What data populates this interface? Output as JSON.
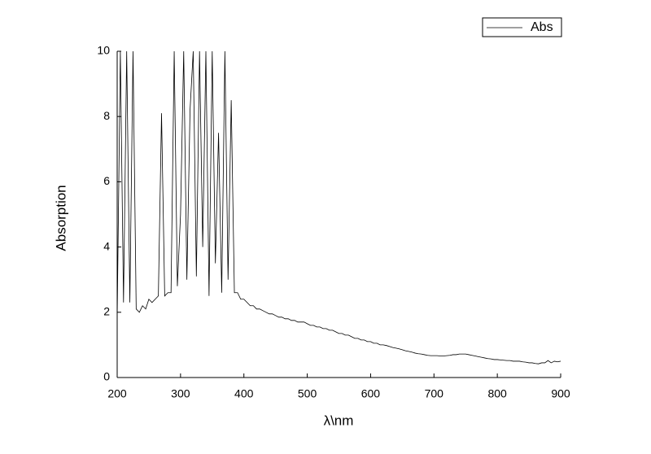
{
  "chart_data": {
    "type": "line",
    "x_label": "λ\\nm",
    "y_label": "Absorption",
    "x": [
      200,
      205,
      210,
      215,
      220,
      225,
      230,
      235,
      240,
      245,
      250,
      255,
      260,
      265,
      270,
      275,
      280,
      285,
      290,
      295,
      300,
      305,
      310,
      315,
      320,
      325,
      330,
      335,
      340,
      345,
      350,
      355,
      360,
      365,
      370,
      375,
      380,
      385,
      390,
      395,
      400,
      405,
      410,
      415,
      420,
      425,
      430,
      435,
      440,
      445,
      450,
      455,
      460,
      465,
      470,
      475,
      480,
      485,
      490,
      495,
      500,
      505,
      510,
      515,
      520,
      525,
      530,
      535,
      540,
      545,
      550,
      555,
      560,
      565,
      570,
      575,
      580,
      585,
      590,
      595,
      600,
      605,
      610,
      615,
      620,
      625,
      630,
      635,
      640,
      645,
      650,
      655,
      660,
      665,
      670,
      675,
      680,
      685,
      690,
      695,
      700,
      705,
      710,
      715,
      720,
      725,
      730,
      735,
      740,
      745,
      750,
      755,
      760,
      765,
      770,
      775,
      780,
      785,
      790,
      795,
      800,
      805,
      810,
      815,
      820,
      825,
      830,
      835,
      840,
      845,
      850,
      855,
      860,
      865,
      870,
      875,
      880,
      885,
      890,
      895,
      900
    ],
    "series": [
      {
        "name": "Abs",
        "color": "#000000",
        "values": [
          1.8,
          10,
          2.3,
          10,
          2.3,
          10,
          2.1,
          2.0,
          2.2,
          2.1,
          2.4,
          2.3,
          2.4,
          2.5,
          8.1,
          2.5,
          2.6,
          2.6,
          10,
          2.8,
          5.0,
          10,
          3.0,
          8.2,
          10,
          3.1,
          10,
          4.0,
          10,
          2.5,
          10,
          3.5,
          7.5,
          2.6,
          10,
          3.0,
          8.5,
          2.6,
          2.6,
          2.4,
          2.4,
          2.3,
          2.2,
          2.2,
          2.1,
          2.1,
          2.05,
          2.0,
          1.95,
          1.95,
          1.9,
          1.85,
          1.85,
          1.8,
          1.8,
          1.75,
          1.75,
          1.7,
          1.7,
          1.7,
          1.65,
          1.6,
          1.6,
          1.55,
          1.55,
          1.5,
          1.5,
          1.45,
          1.45,
          1.4,
          1.35,
          1.35,
          1.3,
          1.3,
          1.25,
          1.2,
          1.2,
          1.15,
          1.15,
          1.1,
          1.1,
          1.05,
          1.05,
          1.0,
          1.0,
          0.98,
          0.95,
          0.92,
          0.9,
          0.88,
          0.85,
          0.82,
          0.8,
          0.78,
          0.75,
          0.73,
          0.72,
          0.7,
          0.68,
          0.67,
          0.67,
          0.67,
          0.66,
          0.66,
          0.67,
          0.68,
          0.7,
          0.7,
          0.72,
          0.72,
          0.72,
          0.7,
          0.68,
          0.66,
          0.64,
          0.62,
          0.6,
          0.58,
          0.57,
          0.55,
          0.55,
          0.54,
          0.53,
          0.52,
          0.52,
          0.5,
          0.5,
          0.5,
          0.48,
          0.47,
          0.45,
          0.45,
          0.43,
          0.42,
          0.45,
          0.45,
          0.52,
          0.45,
          0.5,
          0.48,
          0.5
        ]
      }
    ],
    "xlim": [
      200,
      900
    ],
    "xticks": [
      200,
      300,
      400,
      500,
      600,
      700,
      800,
      900
    ],
    "ylim": [
      0,
      10
    ],
    "yticks": [
      0,
      2,
      4,
      6,
      8,
      10
    ],
    "legend": "top-right"
  }
}
